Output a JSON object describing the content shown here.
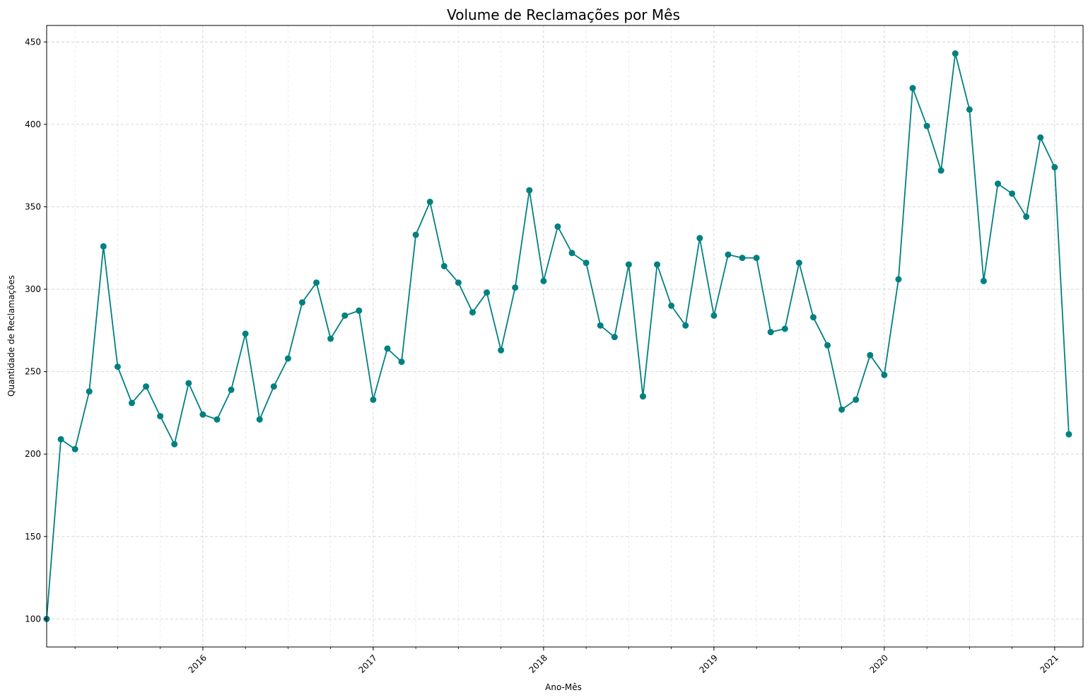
{
  "chart_data": {
    "type": "line",
    "title": "Volume de Reclamações por Mês",
    "xlabel": "Ano-Mês",
    "ylabel": "Quantidade de Reclamações",
    "grid": true,
    "marker": "circle",
    "color": "#008080",
    "ylim": [
      83,
      460
    ],
    "xlim": [
      "2015-02",
      "2021-03"
    ],
    "yticks": [
      100,
      150,
      200,
      250,
      300,
      350,
      400,
      450
    ],
    "xtick_labels": [
      "2016",
      "2017",
      "2018",
      "2019",
      "2020",
      "2021"
    ],
    "series": [
      {
        "values": [
          [
            "2015-02",
            100
          ],
          [
            "2015-03",
            209
          ],
          [
            "2015-04",
            203
          ],
          [
            "2015-05",
            238
          ],
          [
            "2015-06",
            326
          ],
          [
            "2015-07",
            253
          ],
          [
            "2015-08",
            231
          ],
          [
            "2015-09",
            241
          ],
          [
            "2015-10",
            223
          ],
          [
            "2015-11",
            206
          ],
          [
            "2015-12",
            243
          ],
          [
            "2016-01",
            224
          ],
          [
            "2016-02",
            221
          ],
          [
            "2016-03",
            239
          ],
          [
            "2016-04",
            273
          ],
          [
            "2016-05",
            221
          ],
          [
            "2016-06",
            241
          ],
          [
            "2016-07",
            258
          ],
          [
            "2016-08",
            292
          ],
          [
            "2016-09",
            304
          ],
          [
            "2016-10",
            270
          ],
          [
            "2016-11",
            284
          ],
          [
            "2016-12",
            287
          ],
          [
            "2017-01",
            233
          ],
          [
            "2017-02",
            264
          ],
          [
            "2017-03",
            256
          ],
          [
            "2017-04",
            333
          ],
          [
            "2017-05",
            353
          ],
          [
            "2017-06",
            314
          ],
          [
            "2017-07",
            304
          ],
          [
            "2017-08",
            286
          ],
          [
            "2017-09",
            298
          ],
          [
            "2017-10",
            263
          ],
          [
            "2017-11",
            301
          ],
          [
            "2017-12",
            360
          ],
          [
            "2018-01",
            305
          ],
          [
            "2018-02",
            338
          ],
          [
            "2018-03",
            322
          ],
          [
            "2018-04",
            316
          ],
          [
            "2018-05",
            278
          ],
          [
            "2018-06",
            271
          ],
          [
            "2018-07",
            315
          ],
          [
            "2018-08",
            235
          ],
          [
            "2018-09",
            315
          ],
          [
            "2018-10",
            290
          ],
          [
            "2018-11",
            278
          ],
          [
            "2018-12",
            331
          ],
          [
            "2019-01",
            284
          ],
          [
            "2019-02",
            321
          ],
          [
            "2019-03",
            319
          ],
          [
            "2019-04",
            319
          ],
          [
            "2019-05",
            274
          ],
          [
            "2019-06",
            276
          ],
          [
            "2019-07",
            316
          ],
          [
            "2019-08",
            283
          ],
          [
            "2019-09",
            266
          ],
          [
            "2019-10",
            227
          ],
          [
            "2019-11",
            233
          ],
          [
            "2019-12",
            260
          ],
          [
            "2020-01",
            248
          ],
          [
            "2020-02",
            306
          ],
          [
            "2020-03",
            422
          ],
          [
            "2020-04",
            399
          ],
          [
            "2020-05",
            372
          ],
          [
            "2020-06",
            443
          ],
          [
            "2020-07",
            409
          ],
          [
            "2020-08",
            305
          ],
          [
            "2020-09",
            364
          ],
          [
            "2020-10",
            358
          ],
          [
            "2020-11",
            344
          ],
          [
            "2020-12",
            392
          ],
          [
            "2021-01",
            374
          ],
          [
            "2021-02",
            212
          ]
        ]
      }
    ]
  }
}
